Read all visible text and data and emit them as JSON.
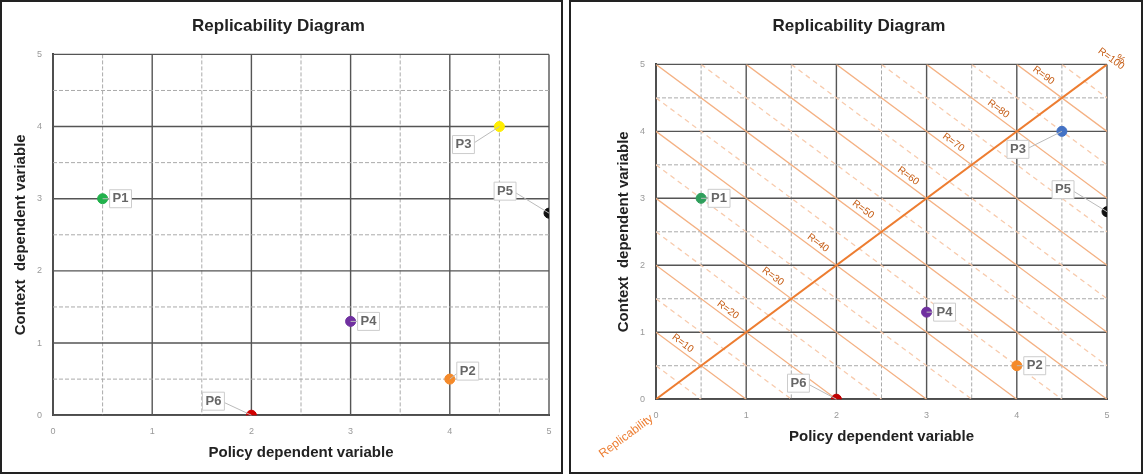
{
  "chart_data": [
    {
      "type": "scatter",
      "title": "Replicability Diagram",
      "xlabel": "Policy dependent variable",
      "ylabel": "Context  dependent variable",
      "xlim": [
        0,
        5
      ],
      "ylim": [
        0,
        5
      ],
      "xticks": [
        0,
        {
          "value": 0.5,
          "label": null
        },
        1,
        {
          "value": 1.5,
          "label": null
        },
        2,
        {
          "value": 2.5,
          "label": null
        },
        3,
        {
          "value": 3.5,
          "label": null
        },
        4,
        {
          "value": 4.5,
          "label": null
        },
        5
      ],
      "yticks": [
        0,
        {
          "value": 0.5,
          "label": null
        },
        1,
        {
          "value": 1.5,
          "label": null
        },
        2,
        {
          "value": 2.5,
          "label": null
        },
        3,
        {
          "value": 3.5,
          "label": null
        },
        4,
        {
          "value": 4.5,
          "label": null
        },
        5
      ],
      "grid": true,
      "marker": "circle",
      "series": [
        {
          "name": "P1",
          "color": "#22b14c",
          "x": [
            0.5
          ],
          "values": [
            3
          ]
        },
        {
          "name": "P2",
          "color": "#f58a2a",
          "x": [
            4
          ],
          "values": [
            0.5
          ]
        },
        {
          "name": "P3",
          "color": "#ffee00",
          "x": [
            4.5
          ],
          "values": [
            4
          ]
        },
        {
          "name": "P4",
          "color": "#7030a0",
          "x": [
            3
          ],
          "values": [
            1.3
          ]
        },
        {
          "name": "P5",
          "color": "#111111",
          "x": [
            5
          ],
          "values": [
            2.8
          ]
        },
        {
          "name": "P6",
          "color": "#d00000",
          "x": [
            2
          ],
          "values": [
            0
          ]
        }
      ]
    },
    {
      "type": "scatter",
      "title": "Replicability Diagram",
      "xlabel": "Policy dependent variable",
      "ylabel": "Context  dependent variable",
      "xlim": [
        0,
        5
      ],
      "ylim": [
        0,
        5
      ],
      "xticks": [
        0,
        {
          "value": 0.5,
          "label": null
        },
        1,
        {
          "value": 1.5,
          "label": null
        },
        2,
        {
          "value": 2.5,
          "label": null
        },
        3,
        {
          "value": 3.5,
          "label": null
        },
        4,
        {
          "value": 4.5,
          "label": null
        },
        5
      ],
      "yticks": [
        0,
        {
          "value": 0.5,
          "label": null
        },
        1,
        {
          "value": 1.5,
          "label": null
        },
        2,
        {
          "value": 2.5,
          "label": null
        },
        3,
        {
          "value": 3.5,
          "label": null
        },
        4,
        {
          "value": 4.5,
          "label": null
        },
        5
      ],
      "grid": true,
      "marker": "circle",
      "series": [
        {
          "name": "P1",
          "color": "#2e9e5b",
          "x": [
            0.5
          ],
          "values": [
            3
          ]
        },
        {
          "name": "P2",
          "color": "#f58a2a",
          "x": [
            4
          ],
          "values": [
            0.5
          ]
        },
        {
          "name": "P3",
          "color": "#4472c4",
          "x": [
            4.5
          ],
          "values": [
            4
          ]
        },
        {
          "name": "P4",
          "color": "#7030a0",
          "x": [
            3
          ],
          "values": [
            1.3
          ]
        },
        {
          "name": "P5",
          "color": "#111111",
          "x": [
            5
          ],
          "values": [
            2.8
          ]
        },
        {
          "name": "P6",
          "color": "#c00000",
          "x": [
            2
          ],
          "values": [
            0
          ]
        },
        {
          "name": "Replicability",
          "type": "line",
          "color": "#ed7d31",
          "line_style": "solid",
          "marker": "none",
          "x": [
            0,
            5
          ],
          "values": [
            0,
            5
          ]
        },
        {
          "type": "line",
          "color": "#f4b183",
          "line_style": "solid",
          "marker": "none",
          "x": [
            0,
            1
          ],
          "values": [
            1,
            0
          ]
        },
        {
          "type": "line",
          "color": "#f4b183",
          "line_style": "solid",
          "marker": "none",
          "x": [
            0,
            2
          ],
          "values": [
            2,
            0
          ]
        },
        {
          "type": "line",
          "color": "#f4b183",
          "line_style": "solid",
          "marker": "none",
          "x": [
            0,
            3
          ],
          "values": [
            3,
            0
          ]
        },
        {
          "type": "line",
          "color": "#f4b183",
          "line_style": "solid",
          "marker": "none",
          "x": [
            0,
            4
          ],
          "values": [
            4,
            0
          ]
        },
        {
          "type": "line",
          "color": "#f4b183",
          "line_style": "solid",
          "marker": "none",
          "x": [
            0,
            5
          ],
          "values": [
            5,
            0
          ]
        },
        {
          "type": "line",
          "color": "#f4b183",
          "line_style": "solid",
          "marker": "none",
          "x": [
            1,
            5
          ],
          "values": [
            5,
            1
          ]
        },
        {
          "type": "line",
          "color": "#f4b183",
          "line_style": "solid",
          "marker": "none",
          "x": [
            2,
            5
          ],
          "values": [
            5,
            2
          ]
        },
        {
          "type": "line",
          "color": "#f4b183",
          "line_style": "solid",
          "marker": "none",
          "x": [
            3,
            5
          ],
          "values": [
            5,
            3
          ]
        },
        {
          "type": "line",
          "color": "#f4b183",
          "line_style": "solid",
          "marker": "none",
          "x": [
            4,
            5
          ],
          "values": [
            5,
            4
          ]
        },
        {
          "type": "line",
          "color": "#f8cbad",
          "line_style": "dashed",
          "marker": "none",
          "x": [
            0,
            0.5
          ],
          "values": [
            0.5,
            0
          ]
        },
        {
          "type": "line",
          "color": "#f8cbad",
          "line_style": "dashed",
          "marker": "none",
          "x": [
            0,
            1.5
          ],
          "values": [
            1.5,
            0
          ]
        },
        {
          "type": "line",
          "color": "#f8cbad",
          "line_style": "dashed",
          "marker": "none",
          "x": [
            0,
            2.5
          ],
          "values": [
            2.5,
            0
          ]
        },
        {
          "type": "line",
          "color": "#f8cbad",
          "line_style": "dashed",
          "marker": "none",
          "x": [
            0,
            3.5
          ],
          "values": [
            3.5,
            0
          ]
        },
        {
          "type": "line",
          "color": "#f8cbad",
          "line_style": "dashed",
          "marker": "none",
          "x": [
            0,
            4.5
          ],
          "values": [
            4.5,
            0
          ]
        },
        {
          "type": "line",
          "color": "#f8cbad",
          "line_style": "dashed",
          "marker": "none",
          "x": [
            0.5,
            5
          ],
          "values": [
            5,
            0.5
          ]
        },
        {
          "type": "line",
          "color": "#f8cbad",
          "line_style": "dashed",
          "marker": "none",
          "x": [
            1.5,
            5
          ],
          "values": [
            5,
            1.5
          ]
        },
        {
          "type": "line",
          "color": "#f8cbad",
          "line_style": "dashed",
          "marker": "none",
          "x": [
            2.5,
            5
          ],
          "values": [
            5,
            2.5
          ]
        },
        {
          "type": "line",
          "color": "#f8cbad",
          "line_style": "dashed",
          "marker": "none",
          "x": [
            3.5,
            5
          ],
          "values": [
            5,
            3.5
          ]
        },
        {
          "type": "line",
          "color": "#f8cbad",
          "line_style": "dashed",
          "marker": "none",
          "x": [
            4.5,
            5
          ],
          "values": [
            5,
            4.5
          ]
        }
      ],
      "annotations": [
        {
          "text": "R=10",
          "x": 0.25,
          "y": 0.75
        },
        {
          "text": "R=20",
          "x": 0.75,
          "y": 1.25
        },
        {
          "text": "R=30",
          "x": 1.25,
          "y": 1.75
        },
        {
          "text": "R=40",
          "x": 1.75,
          "y": 2.25
        },
        {
          "text": "R=50",
          "x": 2.25,
          "y": 2.75
        },
        {
          "text": "R=60",
          "x": 2.75,
          "y": 3.25
        },
        {
          "text": "R=70",
          "x": 3.25,
          "y": 3.75
        },
        {
          "text": "R=80",
          "x": 3.75,
          "y": 4.25
        },
        {
          "text": "R=90",
          "x": 4.25,
          "y": 4.75
        },
        {
          "text": "R=100",
          "x": 5,
          "y": 5
        },
        "%"
      ]
    }
  ]
}
